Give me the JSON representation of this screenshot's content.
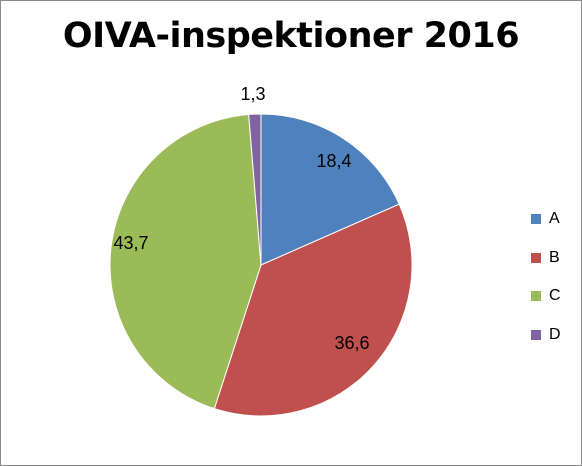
{
  "chart_data": {
    "type": "pie",
    "title": "OIVA-inspektioner 2016",
    "categories": [
      "A",
      "B",
      "C",
      "D"
    ],
    "values": [
      18.4,
      36.6,
      43.7,
      1.3
    ],
    "labels": [
      "18,4",
      "36,6",
      "43,7",
      "1,3"
    ],
    "colors": [
      "#4F81BD",
      "#C0504D",
      "#9BBB59",
      "#8064A2"
    ],
    "legend_position": "right"
  }
}
